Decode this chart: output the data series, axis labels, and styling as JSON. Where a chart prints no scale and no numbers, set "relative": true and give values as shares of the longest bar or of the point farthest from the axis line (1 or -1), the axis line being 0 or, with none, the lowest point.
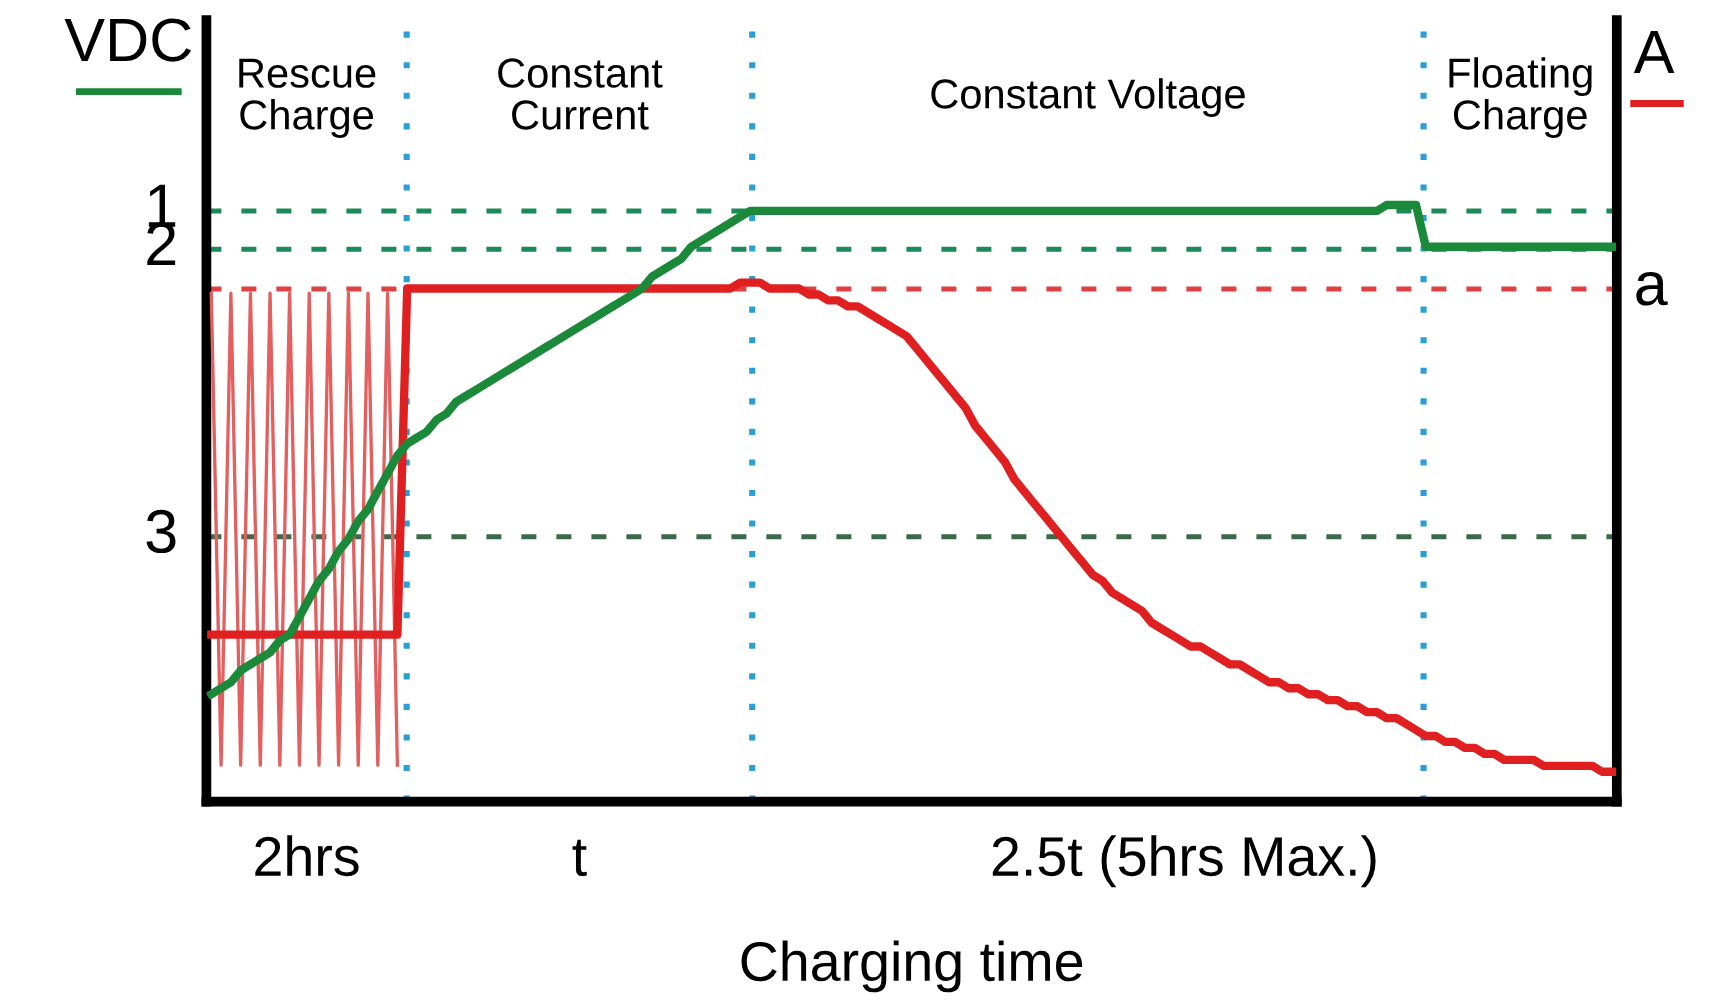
{
  "chart_data": {
    "type": "line",
    "relative": true,
    "xlabel": "Charging time",
    "ylabel": "VDC",
    "y2label": "A",
    "categories": [
      null,
      null,
      null,
      null,
      null,
      null,
      null,
      null,
      null,
      null,
      null,
      null,
      null,
      null,
      null,
      null,
      null,
      null,
      null,
      null,
      null,
      null,
      null,
      null,
      null,
      null,
      null,
      null,
      null,
      null,
      null,
      null,
      null,
      null,
      null,
      null,
      null,
      null,
      null,
      null,
      null,
      null,
      null,
      null,
      null,
      null,
      null,
      null,
      null,
      null,
      null,
      null,
      null,
      null,
      null,
      null,
      null,
      null,
      null,
      null,
      null,
      null,
      null,
      null,
      null,
      null,
      null,
      null,
      null,
      null,
      null,
      null,
      null,
      null,
      null,
      null,
      null,
      null,
      null,
      null,
      null,
      null,
      null,
      null,
      null,
      null,
      null,
      null,
      null,
      null,
      null,
      null,
      null,
      null,
      null,
      null,
      null,
      null,
      null,
      null,
      null,
      null,
      null,
      null,
      null,
      null,
      null,
      null,
      null,
      null,
      null,
      null,
      null,
      null,
      null,
      null,
      null,
      null,
      null,
      null,
      null,
      null,
      null,
      null,
      null,
      null,
      null,
      null,
      null,
      null,
      null,
      null,
      null,
      null,
      null,
      null,
      null,
      null,
      null,
      null,
      null,
      null,
      null,
      null
    ],
    "legend": false,
    "marker": "none",
    "line_style": "solid",
    "series": [
      {
        "color": "#e36060",
        "values": [
          0.852,
          0.061,
          0.852,
          0.061,
          0.852,
          0.061,
          0.852,
          0.061,
          0.852,
          0.061,
          0.852,
          0.061,
          0.852,
          0.061,
          0.852,
          0.061,
          0.852,
          0.061,
          0.852,
          0.061,
          null,
          null,
          null,
          null,
          null,
          null,
          null,
          null,
          null,
          null,
          null,
          null,
          null,
          null,
          null,
          null,
          null,
          null,
          null,
          null,
          null,
          null,
          null,
          null,
          null,
          null,
          null,
          null,
          null,
          null,
          null,
          null,
          null,
          null,
          null,
          null,
          null,
          null,
          null,
          null,
          null,
          null,
          null,
          null,
          null,
          null,
          null,
          null,
          null,
          null,
          null,
          null,
          null,
          null,
          null,
          null,
          null,
          null,
          null,
          null,
          null,
          null,
          null,
          null,
          null,
          null,
          null,
          null,
          null,
          null,
          null,
          null,
          null,
          null,
          null,
          null,
          null,
          null,
          null,
          null,
          null,
          null,
          null,
          null,
          null,
          null,
          null,
          null,
          null,
          null,
          null,
          null,
          null,
          null,
          null,
          null,
          null,
          null,
          null,
          null,
          null,
          null,
          null,
          null,
          null,
          null,
          null,
          null,
          null,
          null,
          null,
          null,
          null,
          null,
          null,
          null,
          null,
          null,
          null,
          null,
          null,
          null,
          null,
          null
        ]
      },
      {
        "color": "#e02020",
        "values": [
          0.28,
          0.28,
          0.28,
          0.28,
          0.28,
          0.28,
          0.28,
          0.28,
          0.28,
          0.28,
          0.28,
          0.28,
          0.28,
          0.28,
          0.28,
          0.28,
          0.28,
          0.28,
          0.28,
          0.28,
          0.86,
          0.86,
          0.86,
          0.86,
          0.86,
          0.86,
          0.86,
          0.86,
          0.86,
          0.86,
          0.86,
          0.86,
          0.86,
          0.86,
          0.86,
          0.86,
          0.86,
          0.86,
          0.86,
          0.86,
          0.86,
          0.86,
          0.86,
          0.86,
          0.86,
          0.86,
          0.86,
          0.86,
          0.86,
          0.86,
          0.86,
          0.86,
          0.86,
          0.86,
          0.87,
          0.87,
          0.87,
          0.86,
          0.86,
          0.86,
          0.86,
          0.85,
          0.85,
          0.84,
          0.84,
          0.83,
          0.83,
          0.82,
          0.81,
          0.8,
          0.79,
          0.78,
          0.76,
          0.74,
          0.72,
          0.7,
          0.68,
          0.66,
          0.63,
          0.61,
          0.59,
          0.57,
          0.54,
          0.52,
          0.5,
          0.48,
          0.46,
          0.44,
          0.42,
          0.4,
          0.38,
          0.37,
          0.35,
          0.34,
          0.33,
          0.32,
          0.3,
          0.29,
          0.28,
          0.27,
          0.26,
          0.26,
          0.25,
          0.24,
          0.23,
          0.23,
          0.22,
          0.21,
          0.2,
          0.2,
          0.19,
          0.19,
          0.18,
          0.18,
          0.17,
          0.17,
          0.16,
          0.16,
          0.15,
          0.15,
          0.14,
          0.14,
          0.13,
          0.12,
          0.11,
          0.11,
          0.1,
          0.1,
          0.09,
          0.09,
          0.08,
          0.08,
          0.07,
          0.07,
          0.07,
          0.07,
          0.06,
          0.06,
          0.06,
          0.06,
          0.06,
          0.06,
          0.05,
          0.05
        ]
      },
      {
        "color": "#1a8a3a",
        "values": [
          0.18,
          0.19,
          0.2,
          0.22,
          0.23,
          0.24,
          0.25,
          0.27,
          0.28,
          0.31,
          0.34,
          0.37,
          0.39,
          0.42,
          0.44,
          0.47,
          0.49,
          0.52,
          0.55,
          0.58,
          0.6,
          0.61,
          0.62,
          0.64,
          0.65,
          0.67,
          0.68,
          0.69,
          0.7,
          0.71,
          0.72,
          0.73,
          0.74,
          0.75,
          0.76,
          0.77,
          0.78,
          0.79,
          0.8,
          0.81,
          0.82,
          0.83,
          0.84,
          0.85,
          0.86,
          0.88,
          0.89,
          0.9,
          0.91,
          0.93,
          0.94,
          0.95,
          0.96,
          0.97,
          0.98,
          0.99,
          0.99,
          0.99,
          0.99,
          0.99,
          0.99,
          0.99,
          0.99,
          0.99,
          0.99,
          0.99,
          0.99,
          0.99,
          0.99,
          0.99,
          0.99,
          0.99,
          0.99,
          0.99,
          0.99,
          0.99,
          0.99,
          0.99,
          0.99,
          0.99,
          0.99,
          0.99,
          0.99,
          0.99,
          0.99,
          0.99,
          0.99,
          0.99,
          0.99,
          0.99,
          0.99,
          0.99,
          0.99,
          0.99,
          0.99,
          0.99,
          0.99,
          0.99,
          0.99,
          0.99,
          0.99,
          0.99,
          0.99,
          0.99,
          0.99,
          0.99,
          0.99,
          0.99,
          0.99,
          0.99,
          0.99,
          0.99,
          0.99,
          0.99,
          0.99,
          0.99,
          0.99,
          0.99,
          0.99,
          0.99,
          1.0,
          1.0,
          1.0,
          1.0,
          0.93,
          0.93,
          0.93,
          0.93,
          0.93,
          0.93,
          0.93,
          0.93,
          0.93,
          0.93,
          0.93,
          0.93,
          0.93,
          0.93,
          0.93,
          0.93,
          0.93,
          0.93,
          0.93,
          0.93
        ]
      }
    ],
    "ref_lines": [
      {
        "axis": "y",
        "value": 0.99,
        "color": "#1a8a5a",
        "line_style": "dashed"
      },
      {
        "axis": "y",
        "value": 0.926,
        "color": "#1a8a5a",
        "line_style": "dashed"
      },
      {
        "axis": "y",
        "value": 0.444,
        "color": "#3a6a4a",
        "line_style": "dashed"
      },
      {
        "axis": "y",
        "value": 0.859,
        "label": "a",
        "color": "#e04040",
        "line_style": "dashed"
      }
    ],
    "annotations": [
      "1",
      "2",
      "3",
      "Rescue\nCharge",
      "Constant\nCurrent",
      "Constant Voltage",
      "Floating\nCharge",
      "2hrs",
      "t",
      "2.5t (5hrs Max.)"
    ]
  }
}
